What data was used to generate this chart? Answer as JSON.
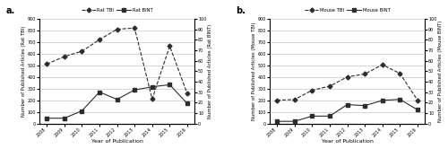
{
  "years": [
    2008,
    2009,
    2010,
    2011,
    2012,
    2013,
    2014,
    2015,
    2016
  ],
  "rat_tbi": [
    510,
    575,
    620,
    720,
    810,
    820,
    210,
    665,
    255
  ],
  "rat_bint": [
    5,
    5,
    12,
    30,
    23,
    32,
    35,
    37,
    19
  ],
  "mouse_tbi": [
    200,
    205,
    285,
    320,
    400,
    425,
    505,
    430,
    200
  ],
  "mouse_bint": [
    2,
    2,
    7,
    7,
    18,
    17,
    22,
    23,
    13
  ],
  "rat_tbi_ylim": [
    0,
    900
  ],
  "rat_bint_ylim": [
    0,
    100
  ],
  "mouse_tbi_ylim": [
    0,
    900
  ],
  "mouse_bint_ylim": [
    0,
    100
  ],
  "rat_tbi_yticks": [
    0,
    100,
    200,
    300,
    400,
    500,
    600,
    700,
    800,
    900
  ],
  "rat_bint_yticks": [
    0,
    10,
    20,
    30,
    40,
    50,
    60,
    70,
    80,
    90,
    100
  ],
  "mouse_tbi_yticks": [
    0,
    100,
    200,
    300,
    400,
    500,
    600,
    700,
    800,
    900
  ],
  "mouse_bint_yticks": [
    0,
    10,
    20,
    30,
    40,
    50,
    60,
    70,
    80,
    90,
    100
  ],
  "label_rat_tbi": "••◆ Rat TBI",
  "label_rat_bint": "■— Rat BINT",
  "label_mouse_tbi": "••◆ Mouse TBI",
  "label_mouse_bint": "■— Mouse BINT",
  "legend_rat_tbi": "Rat TBI",
  "legend_rat_bint": "Rat BINT",
  "legend_mouse_tbi": "Mouse TBI",
  "legend_mouse_bint": "Mouse BINT",
  "ylabel_left_a": "Number of Published Articles (Rat TBI)",
  "ylabel_right_a": "Number of Published Articles (Rat BINT)",
  "ylabel_left_b": "Number of Published Articles (Mouse TBI)",
  "ylabel_right_b": "Number of Published Articles (Mouse BINT)",
  "xlabel": "Year of Publication",
  "panel_a_label": "a.",
  "panel_b_label": "b.",
  "line_color": "#2d2d2d",
  "bg_color": "#ffffff",
  "grid_color": "#c8c8c8"
}
